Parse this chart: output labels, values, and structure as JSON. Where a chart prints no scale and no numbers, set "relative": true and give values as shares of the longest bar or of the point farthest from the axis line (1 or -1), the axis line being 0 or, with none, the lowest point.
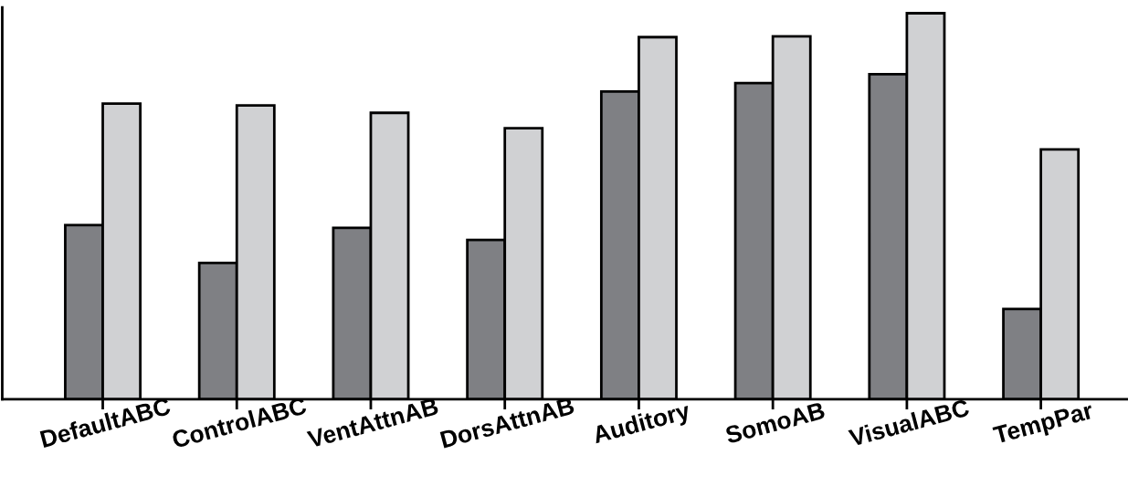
{
  "chart_data": {
    "type": "bar",
    "relative": true,
    "categories": [
      "DefaultABC",
      "ControlABC",
      "VentAttnAB",
      "DorsAttnAB",
      "Auditory",
      "SomoAB",
      "VisualABC",
      "TempPar"
    ],
    "series": [
      {
        "color": "#7f8084",
        "values": [
          0.451,
          0.353,
          0.444,
          0.413,
          0.797,
          0.819,
          0.842,
          0.234
        ]
      },
      {
        "color": "#d0d1d3",
        "values": [
          0.766,
          0.761,
          0.742,
          0.702,
          0.938,
          0.94,
          1.0,
          0.647
        ]
      }
    ],
    "grid": false
  }
}
